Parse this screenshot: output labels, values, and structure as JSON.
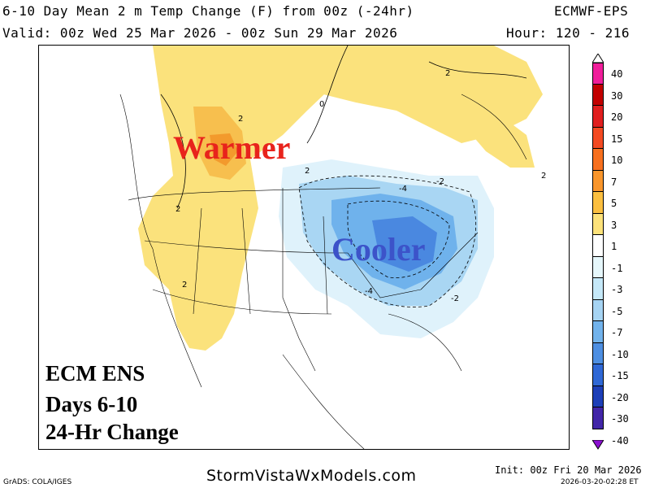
{
  "header": {
    "title": "6-10 Day Mean 2 m Temp Change (F) from 00z (-24hr)",
    "model": "ECMWF-EPS",
    "valid": "Valid: 00z Wed 25 Mar 2026 - 00z Sun 29 Mar 2026",
    "hours": "Hour: 120 - 216"
  },
  "map": {
    "warm_label": "Warmer",
    "cool_label": "Cooler",
    "overlay_lines": [
      "ECM ENS",
      "Days 6-10",
      "24-Hr Change"
    ],
    "contour_labels": [
      {
        "text": "2"
      },
      {
        "text": "2"
      },
      {
        "text": "2"
      },
      {
        "text": "2"
      },
      {
        "text": "2"
      },
      {
        "text": "-2"
      },
      {
        "text": "-4"
      },
      {
        "text": "-4"
      },
      {
        "text": "-2"
      },
      {
        "text": "0"
      },
      {
        "text": "2"
      }
    ],
    "colors": {
      "warm_light": "#fbe27c",
      "warm_mid": "#f7bf4e",
      "warm_dark": "#f39a2c",
      "cool_light": "#dff2fb",
      "cool_mid": "#a9d6f3",
      "cool_dark": "#6fb2ec",
      "cool_deep": "#4a88e0"
    }
  },
  "colorbar": {
    "labels": [
      "40",
      "30",
      "20",
      "15",
      "10",
      "7",
      "5",
      "3",
      "1",
      "-1",
      "-3",
      "-5",
      "-7",
      "-10",
      "-15",
      "-20",
      "-30",
      "-40"
    ],
    "colors": [
      "#f01e9b",
      "#c20000",
      "#e01f1f",
      "#f34a22",
      "#f7701f",
      "#f9962c",
      "#fbbf40",
      "#fde27a",
      "#ffffff",
      "#e6f7fb",
      "#c5e8f8",
      "#a6d4f3",
      "#72b3ec",
      "#4e8fe2",
      "#2f68d6",
      "#1d3fb8",
      "#4226a8",
      "#8b0fd1"
    ]
  },
  "footer": {
    "grads": "GrADS: COLA/IGES",
    "site": "StormVistaWxModels.com",
    "init": "Init: 00z Fri 20 Mar 2026",
    "stamp": "2026-03-20-02:28 ET"
  }
}
